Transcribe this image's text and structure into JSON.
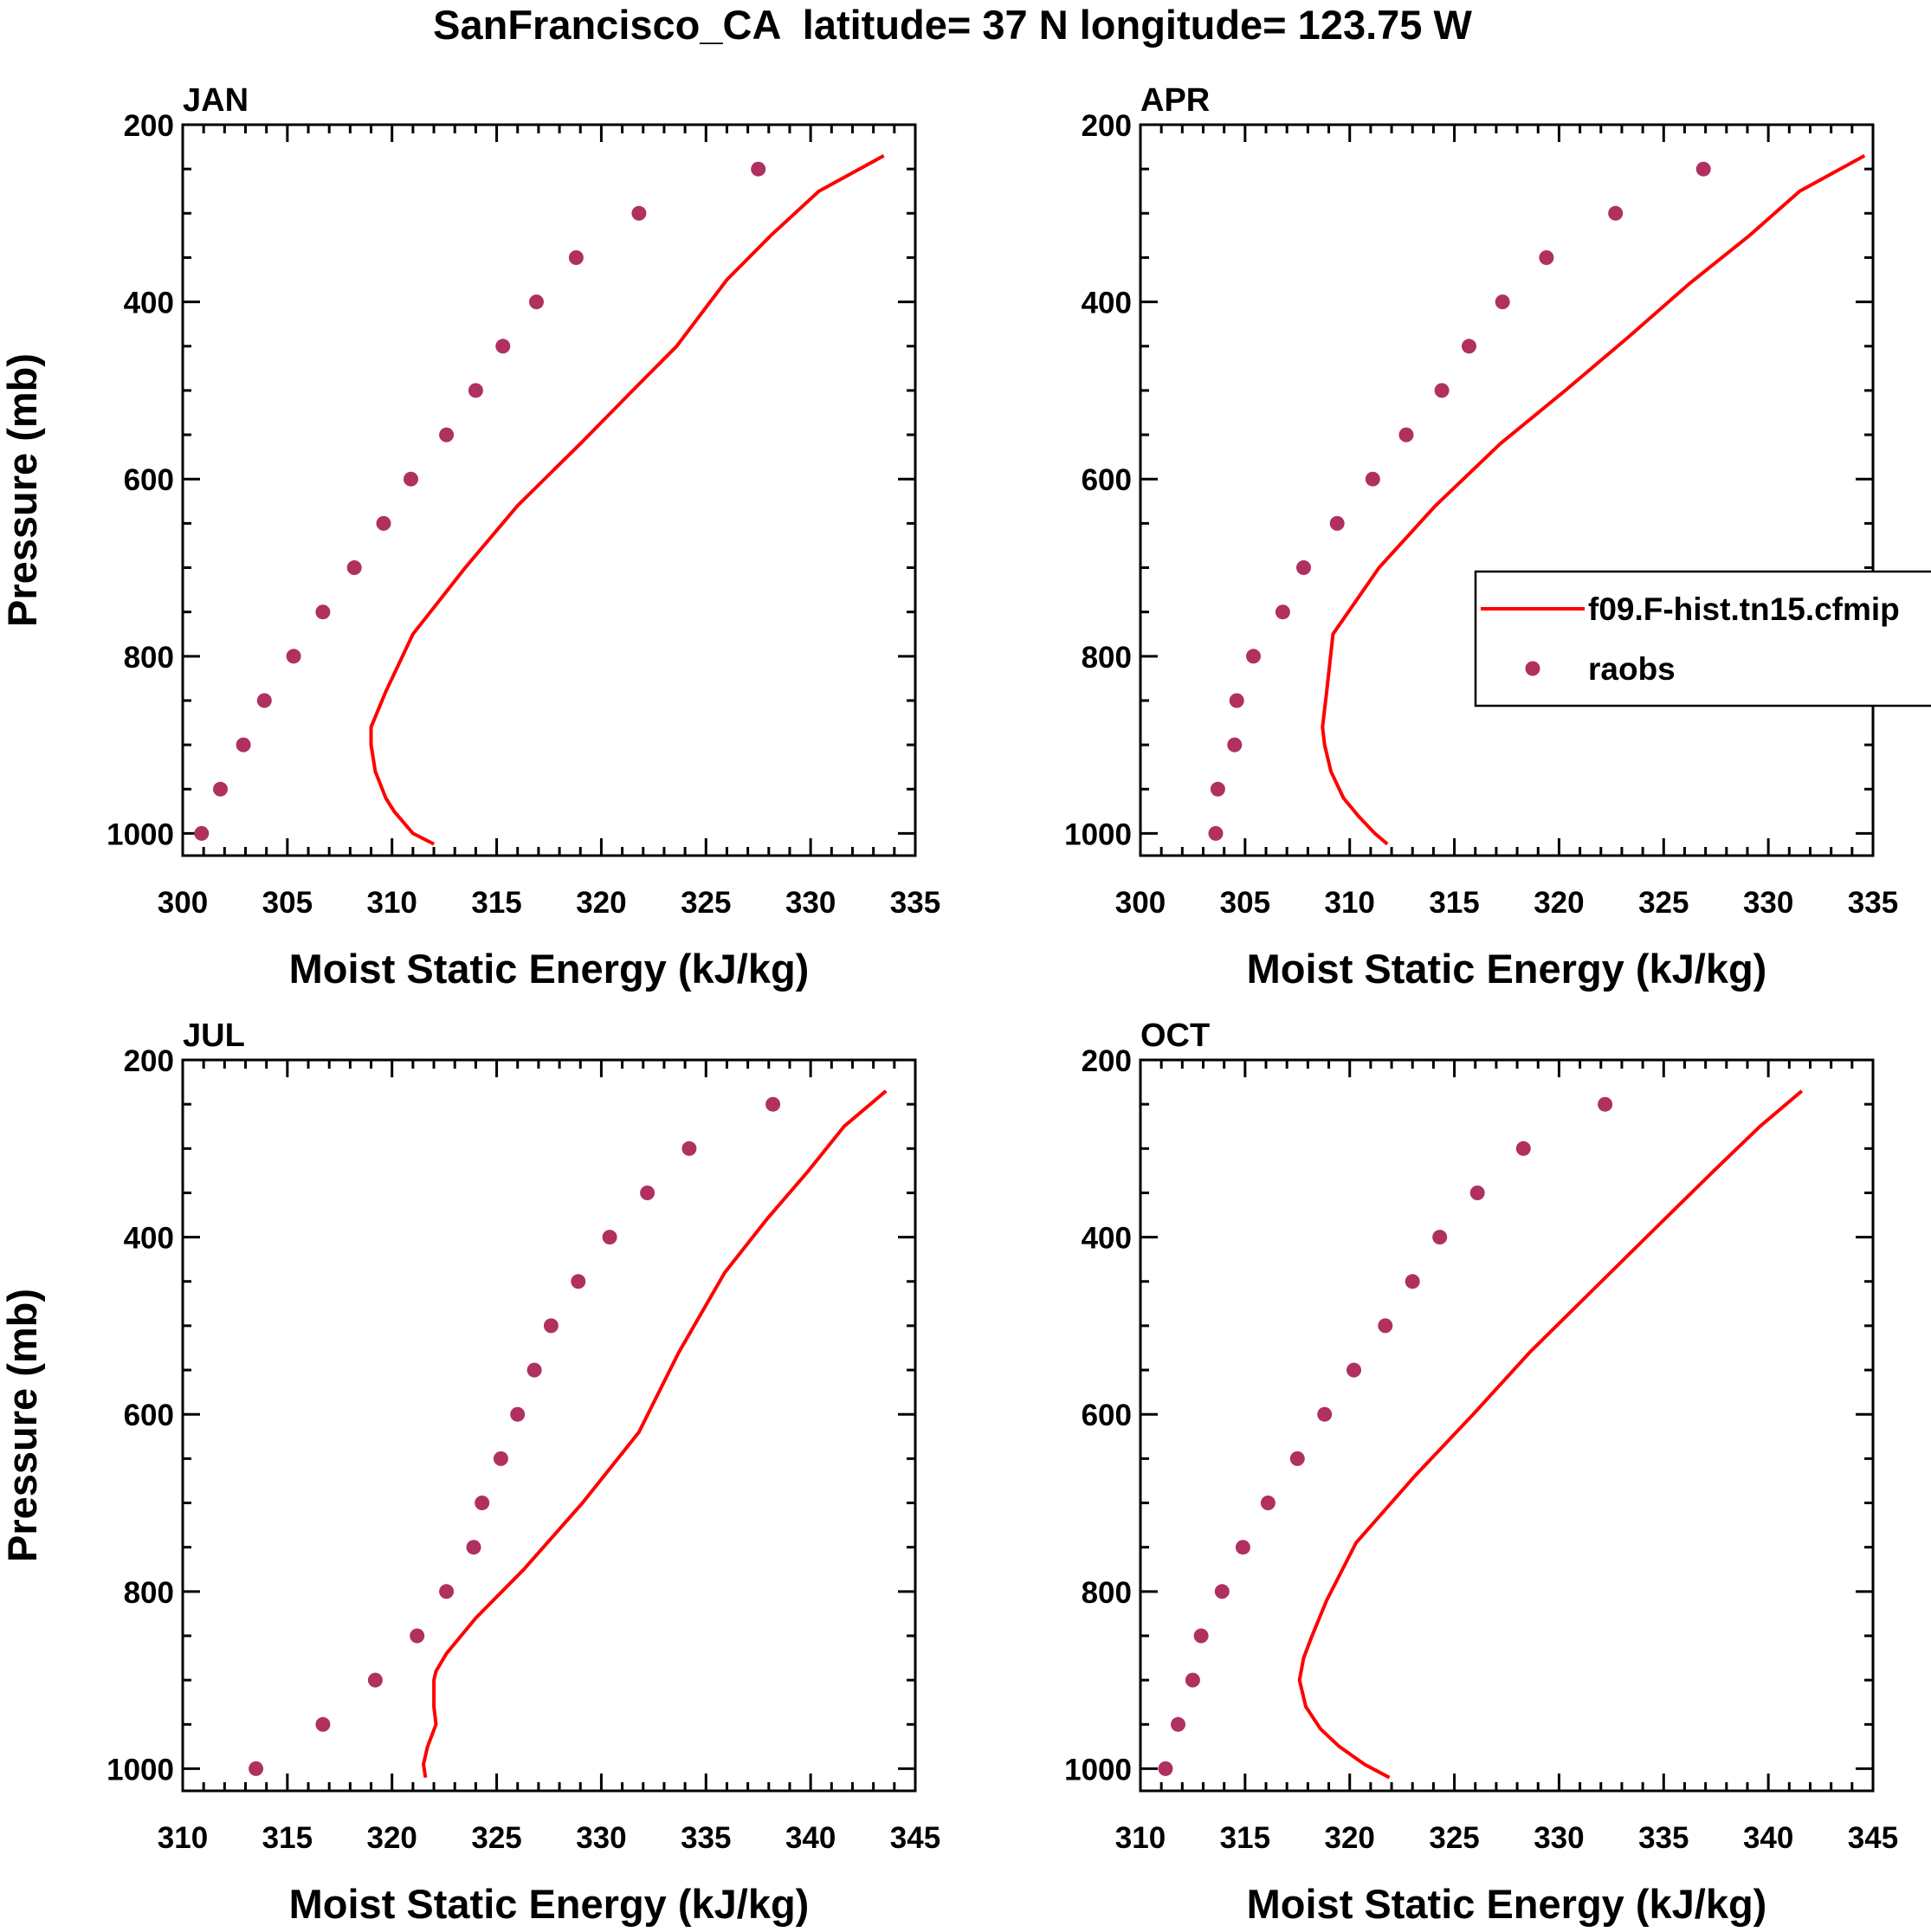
{
  "figure_title": "SanFrancisco_CA  latitude= 37 N longitude= 123.75 W",
  "legend": {
    "entries": [
      {
        "label": "f09.F-hist.tn15.cfmip",
        "kind": "line",
        "color": "#ff0000"
      },
      {
        "label": "raobs",
        "kind": "marker",
        "color": "#b03060"
      }
    ]
  },
  "colors": {
    "model_line": "#ff0000",
    "obs_marker": "#b03060",
    "axes": "#000000"
  },
  "chart_data": [
    {
      "type": "line",
      "title": "JAN",
      "xlabel": "Moist Static Energy (kJ/kg)",
      "ylabel": "Pressure (mb)",
      "xlim": [
        300,
        335
      ],
      "xticks": [
        "300",
        "305",
        "310",
        "315",
        "320",
        "325",
        "330",
        "335"
      ],
      "ylim": [
        1025,
        200
      ],
      "yticks": [
        "200",
        "400",
        "600",
        "800",
        "1000"
      ],
      "series": [
        {
          "name": "f09.F-hist.tn15.cfmip",
          "kind": "line",
          "points": [
            [
              333.5,
              235
            ],
            [
              330.4,
              275
            ],
            [
              328.1,
              325
            ],
            [
              326.0,
              375
            ],
            [
              323.6,
              450
            ],
            [
              321.5,
              500
            ],
            [
              319.0,
              560
            ],
            [
              316.0,
              630
            ],
            [
              313.5,
              700
            ],
            [
              311.0,
              775
            ],
            [
              309.7,
              840
            ],
            [
              309.0,
              880
            ],
            [
              309.0,
              900
            ],
            [
              309.2,
              930
            ],
            [
              309.7,
              960
            ],
            [
              310.1,
              975
            ],
            [
              311.0,
              1000
            ],
            [
              312.0,
              1012
            ]
          ]
        },
        {
          "name": "raobs",
          "kind": "marker",
          "points": [
            [
              327.5,
              250
            ],
            [
              321.8,
              300
            ],
            [
              318.8,
              350
            ],
            [
              316.9,
              400
            ],
            [
              315.3,
              450
            ],
            [
              314.0,
              500
            ],
            [
              312.6,
              550
            ],
            [
              310.9,
              600
            ],
            [
              309.6,
              650
            ],
            [
              308.2,
              700
            ],
            [
              306.7,
              750
            ],
            [
              305.3,
              800
            ],
            [
              303.9,
              850
            ],
            [
              302.9,
              900
            ],
            [
              301.8,
              950
            ],
            [
              300.9,
              1000
            ]
          ]
        }
      ]
    },
    {
      "type": "line",
      "title": "APR",
      "xlabel": "Moist Static Energy (kJ/kg)",
      "ylabel": "",
      "xlim": [
        300,
        335
      ],
      "xticks": [
        "300",
        "305",
        "310",
        "315",
        "320",
        "325",
        "330",
        "335"
      ],
      "ylim": [
        1025,
        200
      ],
      "yticks": [
        "200",
        "400",
        "600",
        "800",
        "1000"
      ],
      "series": [
        {
          "name": "f09.F-hist.tn15.cfmip",
          "kind": "line",
          "points": [
            [
              334.6,
              235
            ],
            [
              331.5,
              275
            ],
            [
              329.1,
              325
            ],
            [
              326.2,
              380
            ],
            [
              323.3,
              440
            ],
            [
              320.3,
              500
            ],
            [
              317.2,
              560
            ],
            [
              314.1,
              630
            ],
            [
              311.4,
              700
            ],
            [
              309.2,
              775
            ],
            [
              308.9,
              840
            ],
            [
              308.7,
              880
            ],
            [
              308.8,
              900
            ],
            [
              309.1,
              930
            ],
            [
              309.7,
              960
            ],
            [
              310.4,
              980
            ],
            [
              311.2,
              1000
            ],
            [
              311.8,
              1012
            ]
          ]
        },
        {
          "name": "raobs",
          "kind": "marker",
          "points": [
            [
              326.9,
              250
            ],
            [
              322.7,
              300
            ],
            [
              319.4,
              350
            ],
            [
              317.3,
              400
            ],
            [
              315.7,
              450
            ],
            [
              314.4,
              500
            ],
            [
              312.7,
              550
            ],
            [
              311.1,
              600
            ],
            [
              309.4,
              650
            ],
            [
              307.8,
              700
            ],
            [
              306.8,
              750
            ],
            [
              305.4,
              800
            ],
            [
              304.6,
              850
            ],
            [
              304.5,
              900
            ],
            [
              303.7,
              950
            ],
            [
              303.6,
              1000
            ]
          ]
        }
      ]
    },
    {
      "type": "line",
      "title": "JUL",
      "xlabel": "Moist Static Energy (kJ/kg)",
      "ylabel": "Pressure (mb)",
      "xlim": [
        310,
        345
      ],
      "xticks": [
        "310",
        "315",
        "320",
        "325",
        "330",
        "335",
        "340",
        "345"
      ],
      "ylim": [
        1025,
        200
      ],
      "yticks": [
        "200",
        "400",
        "600",
        "800",
        "1000"
      ],
      "series": [
        {
          "name": "f09.F-hist.tn15.cfmip",
          "kind": "line",
          "points": [
            [
              343.6,
              235
            ],
            [
              341.6,
              275
            ],
            [
              339.9,
              325
            ],
            [
              337.9,
              380
            ],
            [
              335.9,
              440
            ],
            [
              333.7,
              530
            ],
            [
              331.8,
              620
            ],
            [
              329.1,
              700
            ],
            [
              326.3,
              775
            ],
            [
              324.0,
              830
            ],
            [
              322.6,
              870
            ],
            [
              322.1,
              890
            ],
            [
              322.0,
              900
            ],
            [
              322.0,
              930
            ],
            [
              322.1,
              950
            ],
            [
              321.7,
              975
            ],
            [
              321.5,
              995
            ],
            [
              321.6,
              1010
            ]
          ]
        },
        {
          "name": "raobs",
          "kind": "marker",
          "points": [
            [
              338.2,
              250
            ],
            [
              334.2,
              300
            ],
            [
              332.2,
              350
            ],
            [
              330.4,
              400
            ],
            [
              328.9,
              450
            ],
            [
              327.6,
              500
            ],
            [
              326.8,
              550
            ],
            [
              326.0,
              600
            ],
            [
              325.2,
              650
            ],
            [
              324.3,
              700
            ],
            [
              323.9,
              750
            ],
            [
              322.6,
              800
            ],
            [
              321.2,
              850
            ],
            [
              319.2,
              900
            ],
            [
              316.7,
              950
            ],
            [
              313.5,
              1000
            ]
          ]
        }
      ]
    },
    {
      "type": "line",
      "title": "OCT",
      "xlabel": "Moist Static Energy (kJ/kg)",
      "ylabel": "",
      "xlim": [
        310,
        345
      ],
      "xticks": [
        "310",
        "315",
        "320",
        "325",
        "330",
        "335",
        "340",
        "345"
      ],
      "ylim": [
        1025,
        200
      ],
      "yticks": [
        "200",
        "400",
        "600",
        "800",
        "1000"
      ],
      "series": [
        {
          "name": "f09.F-hist.tn15.cfmip",
          "kind": "line",
          "points": [
            [
              341.6,
              235
            ],
            [
              339.6,
              275
            ],
            [
              337.4,
              325
            ],
            [
              334.6,
              390
            ],
            [
              331.6,
              460
            ],
            [
              328.6,
              530
            ],
            [
              325.9,
              600
            ],
            [
              323.1,
              670
            ],
            [
              320.3,
              745
            ],
            [
              318.9,
              810
            ],
            [
              318.2,
              850
            ],
            [
              317.8,
              875
            ],
            [
              317.6,
              900
            ],
            [
              317.9,
              930
            ],
            [
              318.6,
              955
            ],
            [
              319.5,
              975
            ],
            [
              320.7,
              995
            ],
            [
              321.9,
              1010
            ]
          ]
        },
        {
          "name": "raobs",
          "kind": "marker",
          "points": [
            [
              332.2,
              250
            ],
            [
              328.3,
              300
            ],
            [
              326.1,
              350
            ],
            [
              324.3,
              400
            ],
            [
              323.0,
              450
            ],
            [
              321.7,
              500
            ],
            [
              320.2,
              550
            ],
            [
              318.8,
              600
            ],
            [
              317.5,
              650
            ],
            [
              316.1,
              700
            ],
            [
              314.9,
              750
            ],
            [
              313.9,
              800
            ],
            [
              312.9,
              850
            ],
            [
              312.5,
              900
            ],
            [
              311.8,
              950
            ],
            [
              311.2,
              1000
            ]
          ]
        }
      ]
    }
  ]
}
